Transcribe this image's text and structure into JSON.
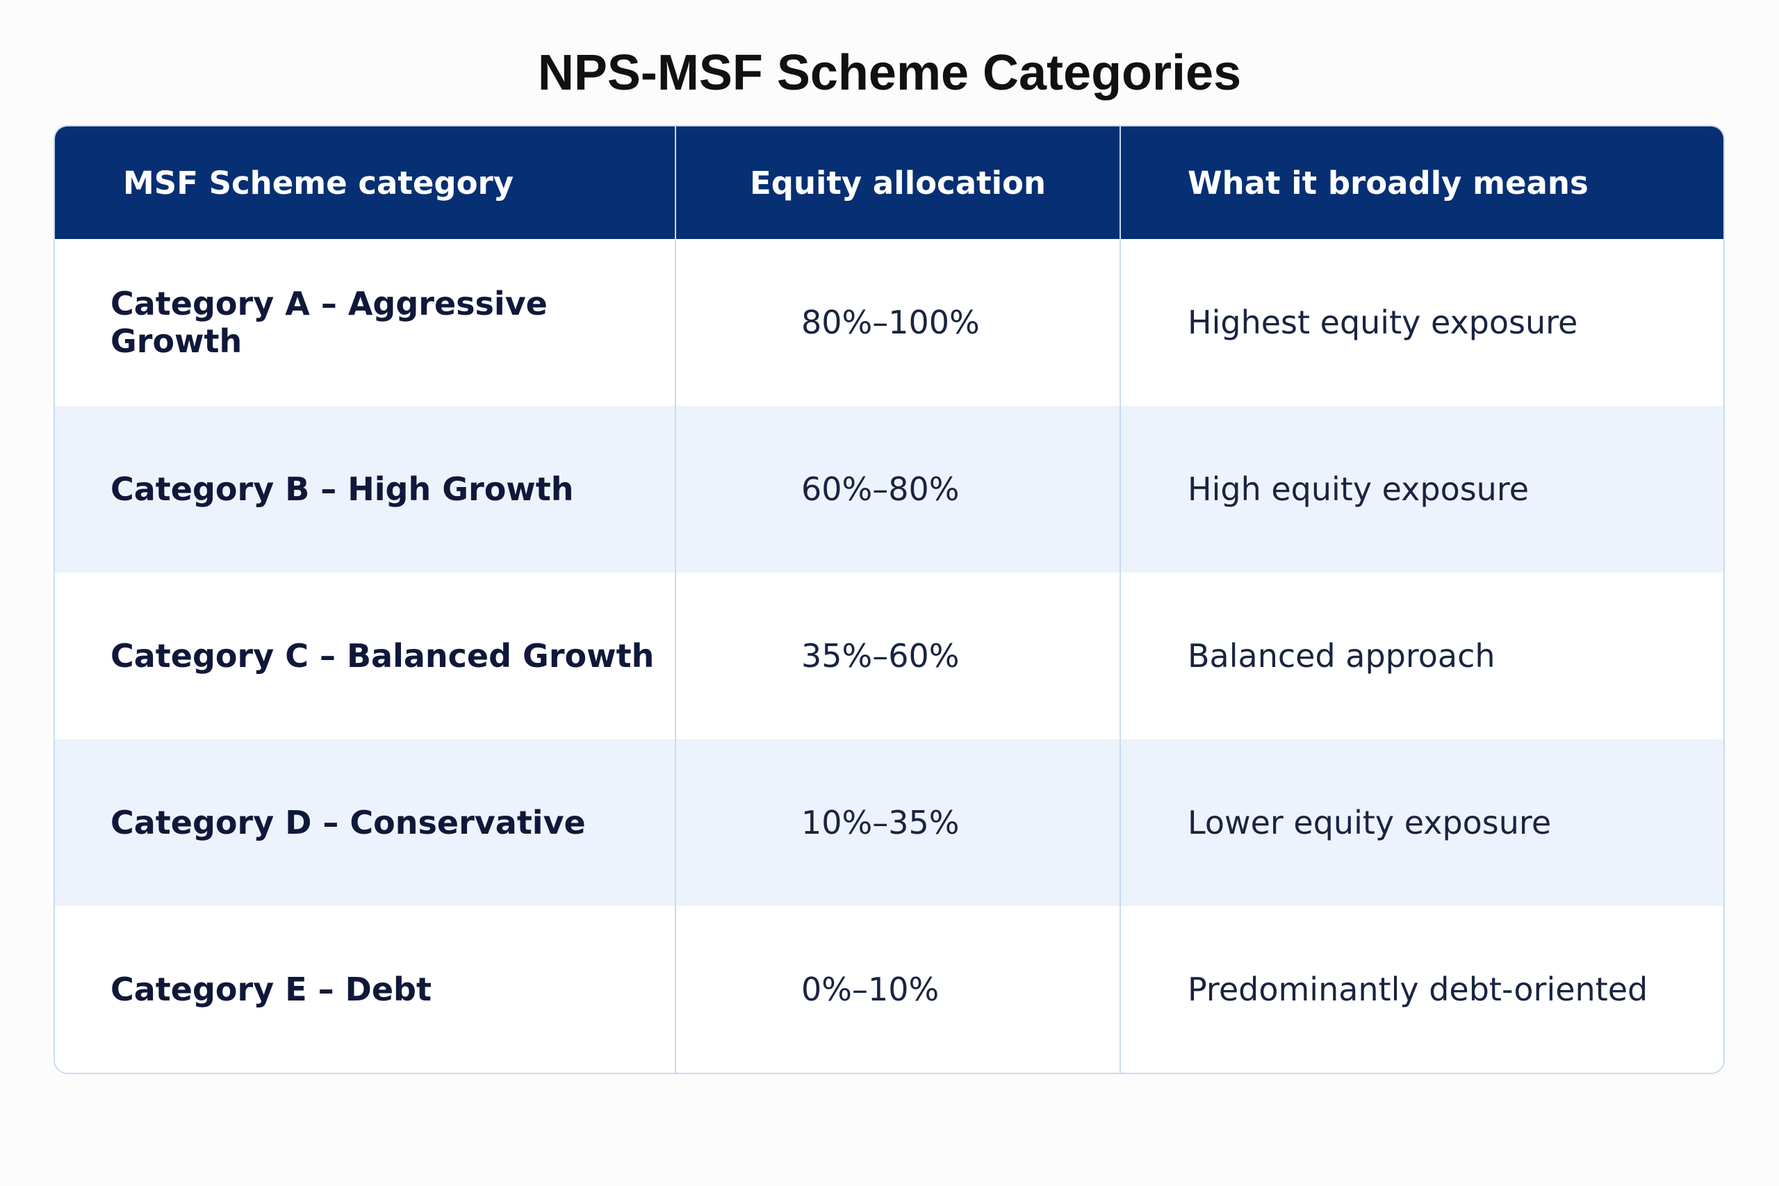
{
  "title": "NPS-MSF Scheme Categories",
  "table": {
    "headers": [
      "MSF Scheme category",
      "Equity allocation",
      "What it broadly means"
    ],
    "rows": [
      {
        "category": "Category A – Aggressive Growth",
        "equity": "80%–100%",
        "meaning": "Highest equity exposure"
      },
      {
        "category": "Category B – High Growth",
        "equity": "60%–80%",
        "meaning": "High equity exposure"
      },
      {
        "category": "Category C – Balanced Growth",
        "equity": "35%–60%",
        "meaning": "Balanced approach"
      },
      {
        "category": "Category D – Conservative",
        "equity": "10%–35%",
        "meaning": "Lower equity exposure"
      },
      {
        "category": "Category E – Debt",
        "equity": "0%–10%",
        "meaning": "Predominantly debt-oriented"
      }
    ]
  },
  "colors": {
    "header_bg": "#072f73",
    "alt_row_bg": "#edf3fc",
    "border": "#c9daf3"
  }
}
